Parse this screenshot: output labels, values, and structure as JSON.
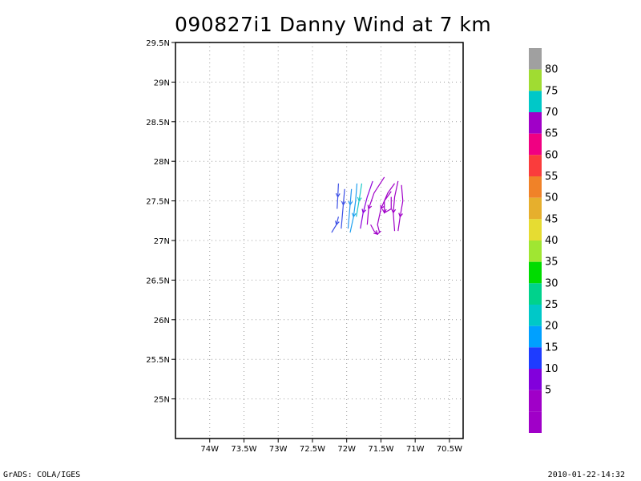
{
  "title": "090827i1 Danny Wind at 7 km",
  "footer": {
    "left": "GrADS: COLA/IGES",
    "right": "2010-01-22-14:32"
  },
  "map": {
    "lat_range": [
      24.5,
      29.5
    ],
    "lon_range": [
      -74.5,
      -70.3
    ],
    "lat_ticks": [
      {
        "value": 25,
        "label": "25N"
      },
      {
        "value": 25.5,
        "label": "25.5N"
      },
      {
        "value": 26,
        "label": "26N"
      },
      {
        "value": 26.5,
        "label": "26.5N"
      },
      {
        "value": 27,
        "label": "27N"
      },
      {
        "value": 27.5,
        "label": "27.5N"
      },
      {
        "value": 28,
        "label": "28N"
      },
      {
        "value": 28.5,
        "label": "28.5N"
      },
      {
        "value": 29,
        "label": "29N"
      },
      {
        "value": 29.5,
        "label": "29.5N"
      }
    ],
    "lon_ticks": [
      {
        "value": -74,
        "label": "74W"
      },
      {
        "value": -73.5,
        "label": "73.5W"
      },
      {
        "value": -73,
        "label": "73W"
      },
      {
        "value": -72.5,
        "label": "72.5W"
      },
      {
        "value": -72,
        "label": "72W"
      },
      {
        "value": -71.5,
        "label": "71.5W"
      },
      {
        "value": -71,
        "label": "71W"
      },
      {
        "value": -70.5,
        "label": "70.5W"
      }
    ],
    "grid": "dotted"
  },
  "colorbar": {
    "top_color": "#a0a0a0",
    "bins": [
      {
        "label": "80",
        "color": "#a0dc32"
      },
      {
        "label": "75",
        "color": "#00c8c8"
      },
      {
        "label": "70",
        "color": "#a000c8"
      },
      {
        "label": "65",
        "color": "#f00082"
      },
      {
        "label": "60",
        "color": "#fa3c3c"
      },
      {
        "label": "55",
        "color": "#f08228"
      },
      {
        "label": "50",
        "color": "#e6af2d"
      },
      {
        "label": "45",
        "color": "#e6dc32"
      },
      {
        "label": "40",
        "color": "#a0e632"
      },
      {
        "label": "35",
        "color": "#00dc00"
      },
      {
        "label": "30",
        "color": "#00d28c"
      },
      {
        "label": "25",
        "color": "#00c8c8"
      },
      {
        "label": "20",
        "color": "#00a0ff"
      },
      {
        "label": "15",
        "color": "#1e3cff"
      },
      {
        "label": "10",
        "color": "#8200dc"
      },
      {
        "label": "5",
        "color": "#a000c8"
      }
    ],
    "bottom_color": "#a000c8"
  },
  "streamlines": [
    {
      "color": "#3c50e6",
      "points": [
        [
          -72.12,
          27.72
        ],
        [
          -72.13,
          27.55
        ],
        [
          -72.14,
          27.4
        ]
      ]
    },
    {
      "color": "#3c50e6",
      "points": [
        [
          -72.03,
          27.65
        ],
        [
          -72.05,
          27.45
        ],
        [
          -72.08,
          27.15
        ]
      ]
    },
    {
      "color": "#2896f0",
      "points": [
        [
          -71.93,
          27.65
        ],
        [
          -71.95,
          27.45
        ],
        [
          -71.98,
          27.15
        ]
      ]
    },
    {
      "color": "#3c50e6",
      "points": [
        [
          -72.12,
          27.3
        ],
        [
          -72.15,
          27.2
        ],
        [
          -72.22,
          27.1
        ]
      ]
    },
    {
      "color": "#1ea0f0",
      "points": [
        [
          -71.85,
          27.72
        ],
        [
          -71.87,
          27.5
        ],
        [
          -71.9,
          27.3
        ],
        [
          -71.95,
          27.1
        ]
      ]
    },
    {
      "color": "#1ec8c8",
      "points": [
        [
          -71.78,
          27.72
        ],
        [
          -71.82,
          27.5
        ],
        [
          -71.86,
          27.3
        ]
      ]
    },
    {
      "color": "#8c00dc",
      "points": [
        [
          -71.62,
          27.75
        ],
        [
          -71.7,
          27.55
        ],
        [
          -71.76,
          27.35
        ],
        [
          -71.8,
          27.15
        ]
      ]
    },
    {
      "color": "#a000c8",
      "points": [
        [
          -71.45,
          27.8
        ],
        [
          -71.6,
          27.6
        ],
        [
          -71.68,
          27.4
        ],
        [
          -71.7,
          27.2
        ]
      ]
    },
    {
      "color": "#a000c8",
      "points": [
        [
          -71.3,
          27.72
        ],
        [
          -71.4,
          27.6
        ],
        [
          -71.5,
          27.4
        ],
        [
          -71.55,
          27.2
        ],
        [
          -71.52,
          27.1
        ]
      ]
    },
    {
      "color": "#a000c8",
      "points": [
        [
          -71.35,
          27.62
        ],
        [
          -71.45,
          27.5
        ],
        [
          -71.45,
          27.35
        ],
        [
          -71.35,
          27.4
        ],
        [
          -71.35,
          27.55
        ]
      ]
    },
    {
      "color": "#a000c8",
      "points": [
        [
          -71.25,
          27.75
        ],
        [
          -71.3,
          27.55
        ],
        [
          -71.32,
          27.35
        ],
        [
          -71.3,
          27.12
        ]
      ]
    },
    {
      "color": "#a000c8",
      "points": [
        [
          -71.2,
          27.7
        ],
        [
          -71.18,
          27.5
        ],
        [
          -71.22,
          27.3
        ],
        [
          -71.25,
          27.12
        ]
      ]
    },
    {
      "color": "#a000c8",
      "points": [
        [
          -71.65,
          27.2
        ],
        [
          -71.6,
          27.12
        ],
        [
          -71.55,
          27.08
        ],
        [
          -71.5,
          27.12
        ]
      ]
    }
  ]
}
